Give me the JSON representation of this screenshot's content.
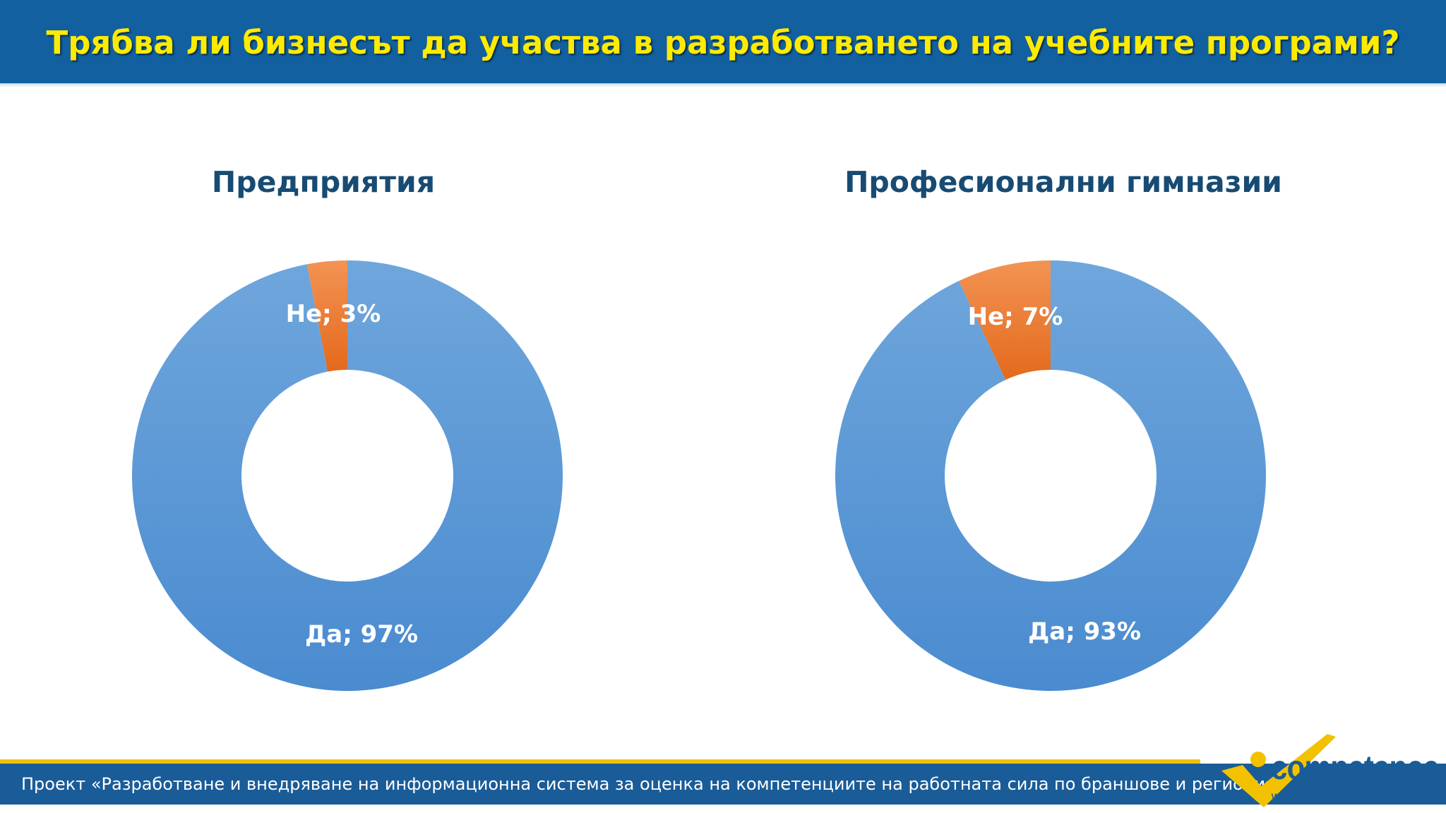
{
  "header": {
    "title": "Трябва ли бизнесът да участва в разработването на учебните програми?"
  },
  "chart_data": [
    {
      "type": "pie",
      "title": "Предприятия",
      "slices": [
        {
          "label": "Не; 3%",
          "value": 3
        },
        {
          "label": "Да; 97%",
          "value": 97
        }
      ]
    },
    {
      "type": "pie",
      "title": "Професионални гимназии",
      "slices": [
        {
          "label": "Не; 7%",
          "value": 7
        },
        {
          "label": "Да; 93%",
          "value": 93
        }
      ]
    }
  ],
  "colors": {
    "yes": "#5b9bd5",
    "no": "#ed7d31",
    "header": "#1260a0",
    "title_text": "#ffeb00",
    "footer_stripe": "#f2c200"
  },
  "footer": {
    "text": "Проект «Разработване и внедряване на информационна система за оценка на компетенциите на работната сила по браншове и региони»"
  },
  "logo": {
    "word": "competence",
    "url": "www.mycompetence.bg"
  }
}
